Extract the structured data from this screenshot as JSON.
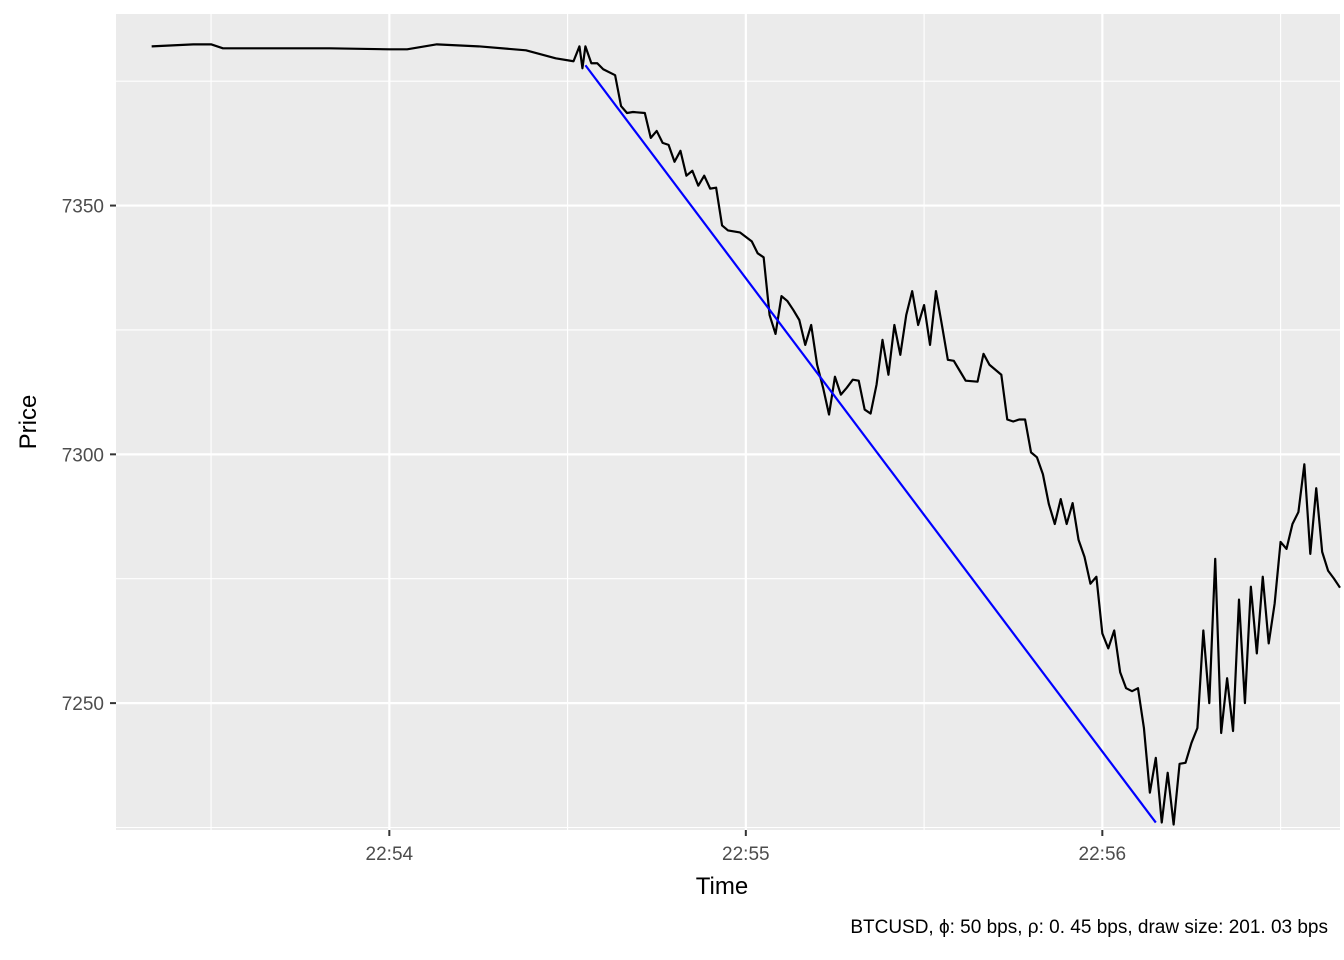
{
  "chart_data": {
    "type": "line",
    "title": "",
    "xlabel": "Time",
    "ylabel": "Price",
    "caption": "BTCUSD, ϕ: 50 bps, ρ: 0. 45 bps, draw size: 201. 03 bps",
    "x_unit": "time (HH:MM:SS)",
    "xlim": [
      "22:53:14",
      "22:56:40"
    ],
    "ylim": [
      7224.5,
      7388.5
    ],
    "x_ticks": [
      "22:54",
      "22:55",
      "22:56"
    ],
    "y_ticks": [
      7250,
      7300,
      7350
    ],
    "grid": true,
    "legend": "none",
    "colors": {
      "panel_bg": "#ebebeb",
      "grid_major": "#ffffff",
      "price_line": "#000000",
      "drawdown_line": "#0000ff",
      "tick_text": "#4d4d4d",
      "tick_mark": "#333333"
    },
    "series": [
      {
        "color": "#000000",
        "points": [
          [
            "22:53:20",
            7382.0
          ],
          [
            "22:53:27",
            7382.4
          ],
          [
            "22:53:30",
            7382.4
          ],
          [
            "22:53:32",
            7381.6
          ],
          [
            "22:53:40",
            7381.6
          ],
          [
            "22:53:50",
            7381.6
          ],
          [
            "22:54:00",
            7381.4
          ],
          [
            "22:54:03",
            7381.4
          ],
          [
            "22:54:08",
            7382.4
          ],
          [
            "22:54:15",
            7382.0
          ],
          [
            "22:54:23",
            7381.2
          ],
          [
            "22:54:28",
            7379.6
          ],
          [
            "22:54:31",
            7379.0
          ],
          [
            "22:54:32",
            7382.0
          ],
          [
            "22:54:32.5",
            7377.6
          ],
          [
            "22:54:33",
            7382.0
          ],
          [
            "22:54:34",
            7378.6
          ],
          [
            "22:54:35",
            7378.6
          ],
          [
            "22:54:36",
            7377.4
          ],
          [
            "22:54:38",
            7376.2
          ],
          [
            "22:54:39",
            7370.0
          ],
          [
            "22:54:40",
            7368.6
          ],
          [
            "22:54:41",
            7368.8
          ],
          [
            "22:54:43",
            7368.6
          ],
          [
            "22:54:44",
            7363.6
          ],
          [
            "22:54:45",
            7365.0
          ],
          [
            "22:54:46",
            7362.6
          ],
          [
            "22:54:47",
            7362.2
          ],
          [
            "22:54:48",
            7358.8
          ],
          [
            "22:54:49",
            7361.0
          ],
          [
            "22:54:50",
            7356.0
          ],
          [
            "22:54:51",
            7357.0
          ],
          [
            "22:54:52",
            7354.0
          ],
          [
            "22:54:53",
            7356.0
          ],
          [
            "22:54:54",
            7353.4
          ],
          [
            "22:54:55",
            7353.6
          ],
          [
            "22:54:56",
            7346.0
          ],
          [
            "22:54:57",
            7345.0
          ],
          [
            "22:54:59",
            7344.6
          ],
          [
            "22:55:01",
            7342.8
          ],
          [
            "22:55:02",
            7340.4
          ],
          [
            "22:55:03",
            7339.6
          ],
          [
            "22:55:04",
            7328.0
          ],
          [
            "22:55:05",
            7324.2
          ],
          [
            "22:55:06",
            7331.8
          ],
          [
            "22:55:07",
            7330.8
          ],
          [
            "22:55:08",
            7329.0
          ],
          [
            "22:55:09",
            7327.0
          ],
          [
            "22:55:10",
            7322.0
          ],
          [
            "22:55:11",
            7326.0
          ],
          [
            "22:55:12",
            7318.0
          ],
          [
            "22:55:13",
            7313.4
          ],
          [
            "22:55:14",
            7308.0
          ],
          [
            "22:55:15",
            7315.6
          ],
          [
            "22:55:16",
            7312.0
          ],
          [
            "22:55:17",
            7313.4
          ],
          [
            "22:55:18",
            7315.0
          ],
          [
            "22:55:19",
            7314.8
          ],
          [
            "22:55:20",
            7309.0
          ],
          [
            "22:55:21",
            7308.2
          ],
          [
            "22:55:22",
            7314.0
          ],
          [
            "22:55:23",
            7323.0
          ],
          [
            "22:55:24",
            7316.0
          ],
          [
            "22:55:25",
            7326.0
          ],
          [
            "22:55:26",
            7320.0
          ],
          [
            "22:55:27",
            7328.0
          ],
          [
            "22:55:28",
            7332.8
          ],
          [
            "22:55:29",
            7326.0
          ],
          [
            "22:55:30",
            7330.0
          ],
          [
            "22:55:31",
            7322.0
          ],
          [
            "22:55:32",
            7332.8
          ],
          [
            "22:55:33",
            7326.0
          ],
          [
            "22:55:34",
            7319.0
          ],
          [
            "22:55:35",
            7318.8
          ],
          [
            "22:55:36",
            7316.8
          ],
          [
            "22:55:37",
            7314.8
          ],
          [
            "22:55:39",
            7314.6
          ],
          [
            "22:55:40",
            7320.2
          ],
          [
            "22:55:41",
            7318.0
          ],
          [
            "22:55:43",
            7316.0
          ],
          [
            "22:55:44",
            7307.0
          ],
          [
            "22:55:45",
            7306.6
          ],
          [
            "22:55:46",
            7307.0
          ],
          [
            "22:55:47",
            7307.0
          ],
          [
            "22:55:48",
            7300.4
          ],
          [
            "22:55:49",
            7299.4
          ],
          [
            "22:55:50",
            7296.0
          ],
          [
            "22:55:51",
            7290.0
          ],
          [
            "22:55:52",
            7286.0
          ],
          [
            "22:55:53",
            7291.0
          ],
          [
            "22:55:54",
            7286.0
          ],
          [
            "22:55:55",
            7290.2
          ],
          [
            "22:55:56",
            7282.8
          ],
          [
            "22:55:57",
            7279.4
          ],
          [
            "22:55:58",
            7274.0
          ],
          [
            "22:55:59",
            7275.4
          ],
          [
            "22:56:00",
            7264.0
          ],
          [
            "22:56:01",
            7261.0
          ],
          [
            "22:56:02",
            7264.6
          ],
          [
            "22:56:03",
            7256.2
          ],
          [
            "22:56:04",
            7253.0
          ],
          [
            "22:56:05",
            7252.4
          ],
          [
            "22:56:06",
            7253.0
          ],
          [
            "22:56:07",
            7245.0
          ],
          [
            "22:56:08",
            7232.0
          ],
          [
            "22:56:09",
            7239.0
          ],
          [
            "22:56:10",
            7226.0
          ],
          [
            "22:56:11",
            7236.0
          ],
          [
            "22:56:12",
            7225.6
          ],
          [
            "22:56:13",
            7237.8
          ],
          [
            "22:56:14",
            7238.0
          ],
          [
            "22:56:15",
            7242.0
          ],
          [
            "22:56:16",
            7245.0
          ],
          [
            "22:56:17",
            7264.6
          ],
          [
            "22:56:18",
            7250.0
          ],
          [
            "22:56:19",
            7279.0
          ],
          [
            "22:56:20",
            7244.0
          ],
          [
            "22:56:21",
            7255.0
          ],
          [
            "22:56:22",
            7244.4
          ],
          [
            "22:56:23",
            7270.8
          ],
          [
            "22:56:24",
            7250.0
          ],
          [
            "22:56:25",
            7273.4
          ],
          [
            "22:56:26",
            7260.0
          ],
          [
            "22:56:27",
            7275.4
          ],
          [
            "22:56:28",
            7262.0
          ],
          [
            "22:56:29",
            7270.0
          ],
          [
            "22:56:30",
            7282.4
          ],
          [
            "22:56:31",
            7281.0
          ],
          [
            "22:56:32",
            7286.0
          ],
          [
            "22:56:33",
            7288.4
          ],
          [
            "22:56:34",
            7298.0
          ],
          [
            "22:56:35",
            7280.0
          ],
          [
            "22:56:36",
            7293.2
          ],
          [
            "22:56:37",
            7280.4
          ],
          [
            "22:56:38",
            7276.6
          ],
          [
            "22:56:39",
            7275.0
          ],
          [
            "22:56:40",
            7273.2
          ]
        ]
      },
      {
        "color": "#0000ff",
        "points": [
          [
            "22:54:33",
            7378.2
          ],
          [
            "22:56:09",
            7226.0
          ]
        ]
      }
    ]
  }
}
